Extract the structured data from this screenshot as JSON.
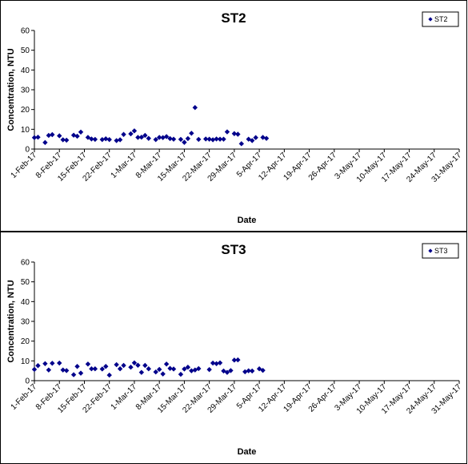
{
  "chart_data": [
    {
      "type": "scatter",
      "title": "ST2",
      "xlabel": "Date",
      "ylabel": "Concentration, NTU",
      "ylim": [
        0,
        60
      ],
      "yticks": [
        "0",
        "10",
        "20",
        "30",
        "40",
        "50",
        "60"
      ],
      "xticks": [
        "1-Feb-17",
        "8-Feb-17",
        "15-Feb-17",
        "22-Feb-17",
        "1-Mar-17",
        "8-Mar-17",
        "15-Mar-17",
        "22-Mar-17",
        "29-Mar-17",
        "5-Apr-17",
        "12-Apr-17",
        "19-Apr-17",
        "26-Apr-17",
        "3-May-17",
        "10-May-17",
        "17-May-17",
        "24-May-17",
        "31-May-17"
      ],
      "grid": false,
      "legend": "top-right",
      "color": "#00008B",
      "series": [
        {
          "name": "ST2",
          "points": [
            [
              "1-Feb-17",
              5.8
            ],
            [
              "2-Feb-17",
              6.0
            ],
            [
              "4-Feb-17",
              3.3
            ],
            [
              "5-Feb-17",
              6.9
            ],
            [
              "6-Feb-17",
              7.3
            ],
            [
              "8-Feb-17",
              6.7
            ],
            [
              "9-Feb-17",
              4.7
            ],
            [
              "10-Feb-17",
              4.5
            ],
            [
              "12-Feb-17",
              7.0
            ],
            [
              "13-Feb-17",
              6.5
            ],
            [
              "14-Feb-17",
              8.6
            ],
            [
              "16-Feb-17",
              5.9
            ],
            [
              "17-Feb-17",
              5.1
            ],
            [
              "18-Feb-17",
              4.9
            ],
            [
              "20-Feb-17",
              4.8
            ],
            [
              "21-Feb-17",
              5.2
            ],
            [
              "22-Feb-17",
              4.8
            ],
            [
              "24-Feb-17",
              4.3
            ],
            [
              "25-Feb-17",
              4.7
            ],
            [
              "26-Feb-17",
              7.4
            ],
            [
              "28-Feb-17",
              7.7
            ],
            [
              "1-Mar-17",
              9.2
            ],
            [
              "2-Mar-17",
              5.9
            ],
            [
              "3-Mar-17",
              6.0
            ],
            [
              "4-Mar-17",
              6.9
            ],
            [
              "5-Mar-17",
              5.4
            ],
            [
              "7-Mar-17",
              4.8
            ],
            [
              "8-Mar-17",
              5.9
            ],
            [
              "9-Mar-17",
              5.8
            ],
            [
              "10-Mar-17",
              6.3
            ],
            [
              "11-Mar-17",
              5.3
            ],
            [
              "12-Mar-17",
              5.0
            ],
            [
              "14-Mar-17",
              4.9
            ],
            [
              "15-Mar-17",
              3.4
            ],
            [
              "16-Mar-17",
              5.3
            ],
            [
              "17-Mar-17",
              8.0
            ],
            [
              "18-Mar-17",
              21.0
            ],
            [
              "19-Mar-17",
              4.9
            ],
            [
              "21-Mar-17",
              5.1
            ],
            [
              "22-Mar-17",
              5.0
            ],
            [
              "23-Mar-17",
              4.7
            ],
            [
              "24-Mar-17",
              5.1
            ],
            [
              "25-Mar-17",
              5.0
            ],
            [
              "26-Mar-17",
              5.0
            ],
            [
              "27-Mar-17",
              8.7
            ],
            [
              "29-Mar-17",
              7.8
            ],
            [
              "30-Mar-17",
              7.5
            ],
            [
              "31-Mar-17",
              2.7
            ],
            [
              "2-Apr-17",
              5.0
            ],
            [
              "3-Apr-17",
              4.3
            ],
            [
              "4-Apr-17",
              5.8
            ],
            [
              "6-Apr-17",
              5.9
            ],
            [
              "7-Apr-17",
              5.4
            ]
          ]
        }
      ]
    },
    {
      "type": "scatter",
      "title": "ST3",
      "xlabel": "Date",
      "ylabel": "Concentration, NTU",
      "ylim": [
        0,
        60
      ],
      "yticks": [
        "0",
        "10",
        "20",
        "30",
        "40",
        "50",
        "60"
      ],
      "xticks": [
        "1-Feb-17",
        "8-Feb-17",
        "15-Feb-17",
        "22-Feb-17",
        "1-Mar-17",
        "8-Mar-17",
        "15-Mar-17",
        "22-Mar-17",
        "29-Mar-17",
        "5-Apr-17",
        "12-Apr-17",
        "19-Apr-17",
        "26-Apr-17",
        "3-May-17",
        "10-May-17",
        "17-May-17",
        "24-May-17",
        "31-May-17"
      ],
      "grid": false,
      "legend": "top-right",
      "color": "#00008B",
      "series": [
        {
          "name": "ST3",
          "points": [
            [
              "1-Feb-17",
              5.7
            ],
            [
              "2-Feb-17",
              7.6
            ],
            [
              "4-Feb-17",
              8.6
            ],
            [
              "5-Feb-17",
              5.4
            ],
            [
              "6-Feb-17",
              8.8
            ],
            [
              "8-Feb-17",
              8.9
            ],
            [
              "9-Feb-17",
              5.4
            ],
            [
              "10-Feb-17",
              5.1
            ],
            [
              "12-Feb-17",
              3.0
            ],
            [
              "13-Feb-17",
              7.2
            ],
            [
              "14-Feb-17",
              3.8
            ],
            [
              "16-Feb-17",
              8.4
            ],
            [
              "17-Feb-17",
              6.0
            ],
            [
              "18-Feb-17",
              6.0
            ],
            [
              "20-Feb-17",
              5.9
            ],
            [
              "21-Feb-17",
              7.2
            ],
            [
              "22-Feb-17",
              2.8
            ],
            [
              "24-Feb-17",
              8.1
            ],
            [
              "25-Feb-17",
              6.0
            ],
            [
              "26-Feb-17",
              7.7
            ],
            [
              "28-Feb-17",
              6.8
            ],
            [
              "1-Mar-17",
              9.0
            ],
            [
              "2-Mar-17",
              7.8
            ],
            [
              "3-Mar-17",
              4.2
            ],
            [
              "4-Mar-17",
              7.7
            ],
            [
              "5-Mar-17",
              6.0
            ],
            [
              "7-Mar-17",
              4.4
            ],
            [
              "8-Mar-17",
              5.7
            ],
            [
              "9-Mar-17",
              3.4
            ],
            [
              "10-Mar-17",
              8.4
            ],
            [
              "11-Mar-17",
              6.2
            ],
            [
              "12-Mar-17",
              5.9
            ],
            [
              "14-Mar-17",
              3.2
            ],
            [
              "15-Mar-17",
              5.9
            ],
            [
              "16-Mar-17",
              6.8
            ],
            [
              "17-Mar-17",
              5.0
            ],
            [
              "18-Mar-17",
              5.4
            ],
            [
              "19-Mar-17",
              6.1
            ],
            [
              "22-Mar-17",
              5.6
            ],
            [
              "23-Mar-17",
              8.9
            ],
            [
              "24-Mar-17",
              8.6
            ],
            [
              "25-Mar-17",
              9.0
            ],
            [
              "26-Mar-17",
              4.9
            ],
            [
              "27-Mar-17",
              4.2
            ],
            [
              "28-Mar-17",
              5.1
            ],
            [
              "29-Mar-17",
              10.4
            ],
            [
              "30-Mar-17",
              10.5
            ],
            [
              "1-Apr-17",
              4.5
            ],
            [
              "2-Apr-17",
              5.0
            ],
            [
              "3-Apr-17",
              4.9
            ],
            [
              "5-Apr-17",
              6.0
            ],
            [
              "6-Apr-17",
              5.2
            ]
          ]
        }
      ]
    }
  ]
}
